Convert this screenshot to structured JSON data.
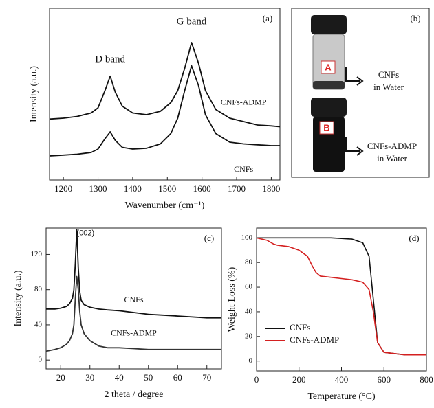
{
  "chart_data": [
    {
      "type": "line",
      "label": "(a)",
      "xlabel": "Wavenumber (cm⁻¹)",
      "ylabel": "Intensity (a.u.)",
      "annotations": [
        "D band",
        "G band"
      ],
      "x": [
        1160,
        1200,
        1240,
        1280,
        1300,
        1320,
        1335,
        1350,
        1370,
        1400,
        1440,
        1480,
        1510,
        1530,
        1550,
        1570,
        1590,
        1610,
        1640,
        1680,
        1720,
        1760,
        1800,
        1825
      ],
      "series": [
        {
          "name": "CNFs-ADMP",
          "color": "#111111",
          "values": [
            35.5,
            36,
            37,
            39,
            42,
            52,
            60.5,
            51,
            43,
            39,
            38,
            40,
            45,
            52,
            65,
            80,
            68,
            52,
            41,
            36,
            34,
            32,
            31.5,
            31
          ]
        },
        {
          "name": "CNFs",
          "color": "#111111",
          "values": [
            14,
            14.5,
            15,
            16,
            18,
            24,
            28,
            23,
            19,
            18,
            18.5,
            21,
            27,
            36,
            52,
            66.5,
            55,
            38,
            27,
            22,
            21,
            20.5,
            20,
            20
          ]
        }
      ],
      "xlim": [
        1160,
        1825
      ],
      "xticks": [
        1200,
        1300,
        1400,
        1500,
        1600,
        1700,
        1800
      ],
      "ylim": [
        0,
        100
      ]
    },
    {
      "type": "line",
      "label": "(c)",
      "xlabel": "2 theta / degree",
      "ylabel": "Intensity (a.u.)",
      "annotations": [
        "(002)"
      ],
      "x": [
        15,
        18,
        20,
        22,
        23,
        24,
        24.5,
        25,
        25.5,
        26,
        26.5,
        27,
        28,
        30,
        33,
        36,
        40,
        45,
        50,
        55,
        60,
        65,
        70,
        75
      ],
      "series": [
        {
          "name": "CNFs",
          "color": "#111111",
          "values": [
            58,
            58,
            59,
            61,
            64,
            70,
            80,
            110,
            148,
            105,
            78,
            68,
            63,
            60,
            58,
            57,
            56,
            54,
            52,
            51,
            50,
            49,
            48,
            48
          ]
        },
        {
          "name": "CNFs-ADMP",
          "color": "#333333",
          "values": [
            10,
            12,
            14,
            18,
            22,
            30,
            40,
            70,
            95,
            80,
            55,
            40,
            30,
            22,
            16,
            14,
            14,
            13,
            12,
            12,
            12,
            12,
            12,
            12
          ]
        }
      ],
      "xlim": [
        15,
        75
      ],
      "xticks": [
        20,
        30,
        40,
        50,
        60,
        70
      ],
      "ylim": [
        -10,
        150
      ],
      "yticks": [
        0,
        40,
        80,
        120
      ]
    },
    {
      "type": "line",
      "label": "(d)",
      "xlabel": "Temperature (°C)",
      "ylabel": "Weight Loss (%)",
      "legend": "lower left",
      "x": [
        0,
        50,
        80,
        100,
        150,
        200,
        240,
        260,
        280,
        300,
        350,
        400,
        450,
        500,
        530,
        550,
        570,
        600,
        700,
        800
      ],
      "series": [
        {
          "name": "CNFs",
          "color": "#111111",
          "values": [
            100,
            100,
            100,
            100,
            100,
            100,
            100,
            100,
            100,
            100,
            100,
            99.5,
            99,
            96,
            85,
            50,
            15,
            7,
            5,
            5
          ]
        },
        {
          "name": "CNFs-ADMP",
          "color": "#d42020",
          "values": [
            100,
            98,
            95,
            94,
            93,
            90,
            85,
            78,
            72,
            69,
            68,
            67,
            66,
            64,
            58,
            40,
            15,
            7,
            5,
            5
          ]
        }
      ],
      "xlim": [
        0,
        800
      ],
      "xticks": [
        0,
        200,
        400,
        600,
        800
      ],
      "ylim": [
        -8,
        108
      ],
      "yticks": [
        0,
        20,
        40,
        60,
        80,
        100
      ]
    }
  ],
  "photo_panel": {
    "label": "(b)",
    "vials": [
      {
        "letter": "A",
        "caption": [
          "CNFs",
          "in Water"
        ]
      },
      {
        "letter": "B",
        "caption": [
          "CNFs-ADMP",
          "in Water"
        ]
      }
    ]
  }
}
